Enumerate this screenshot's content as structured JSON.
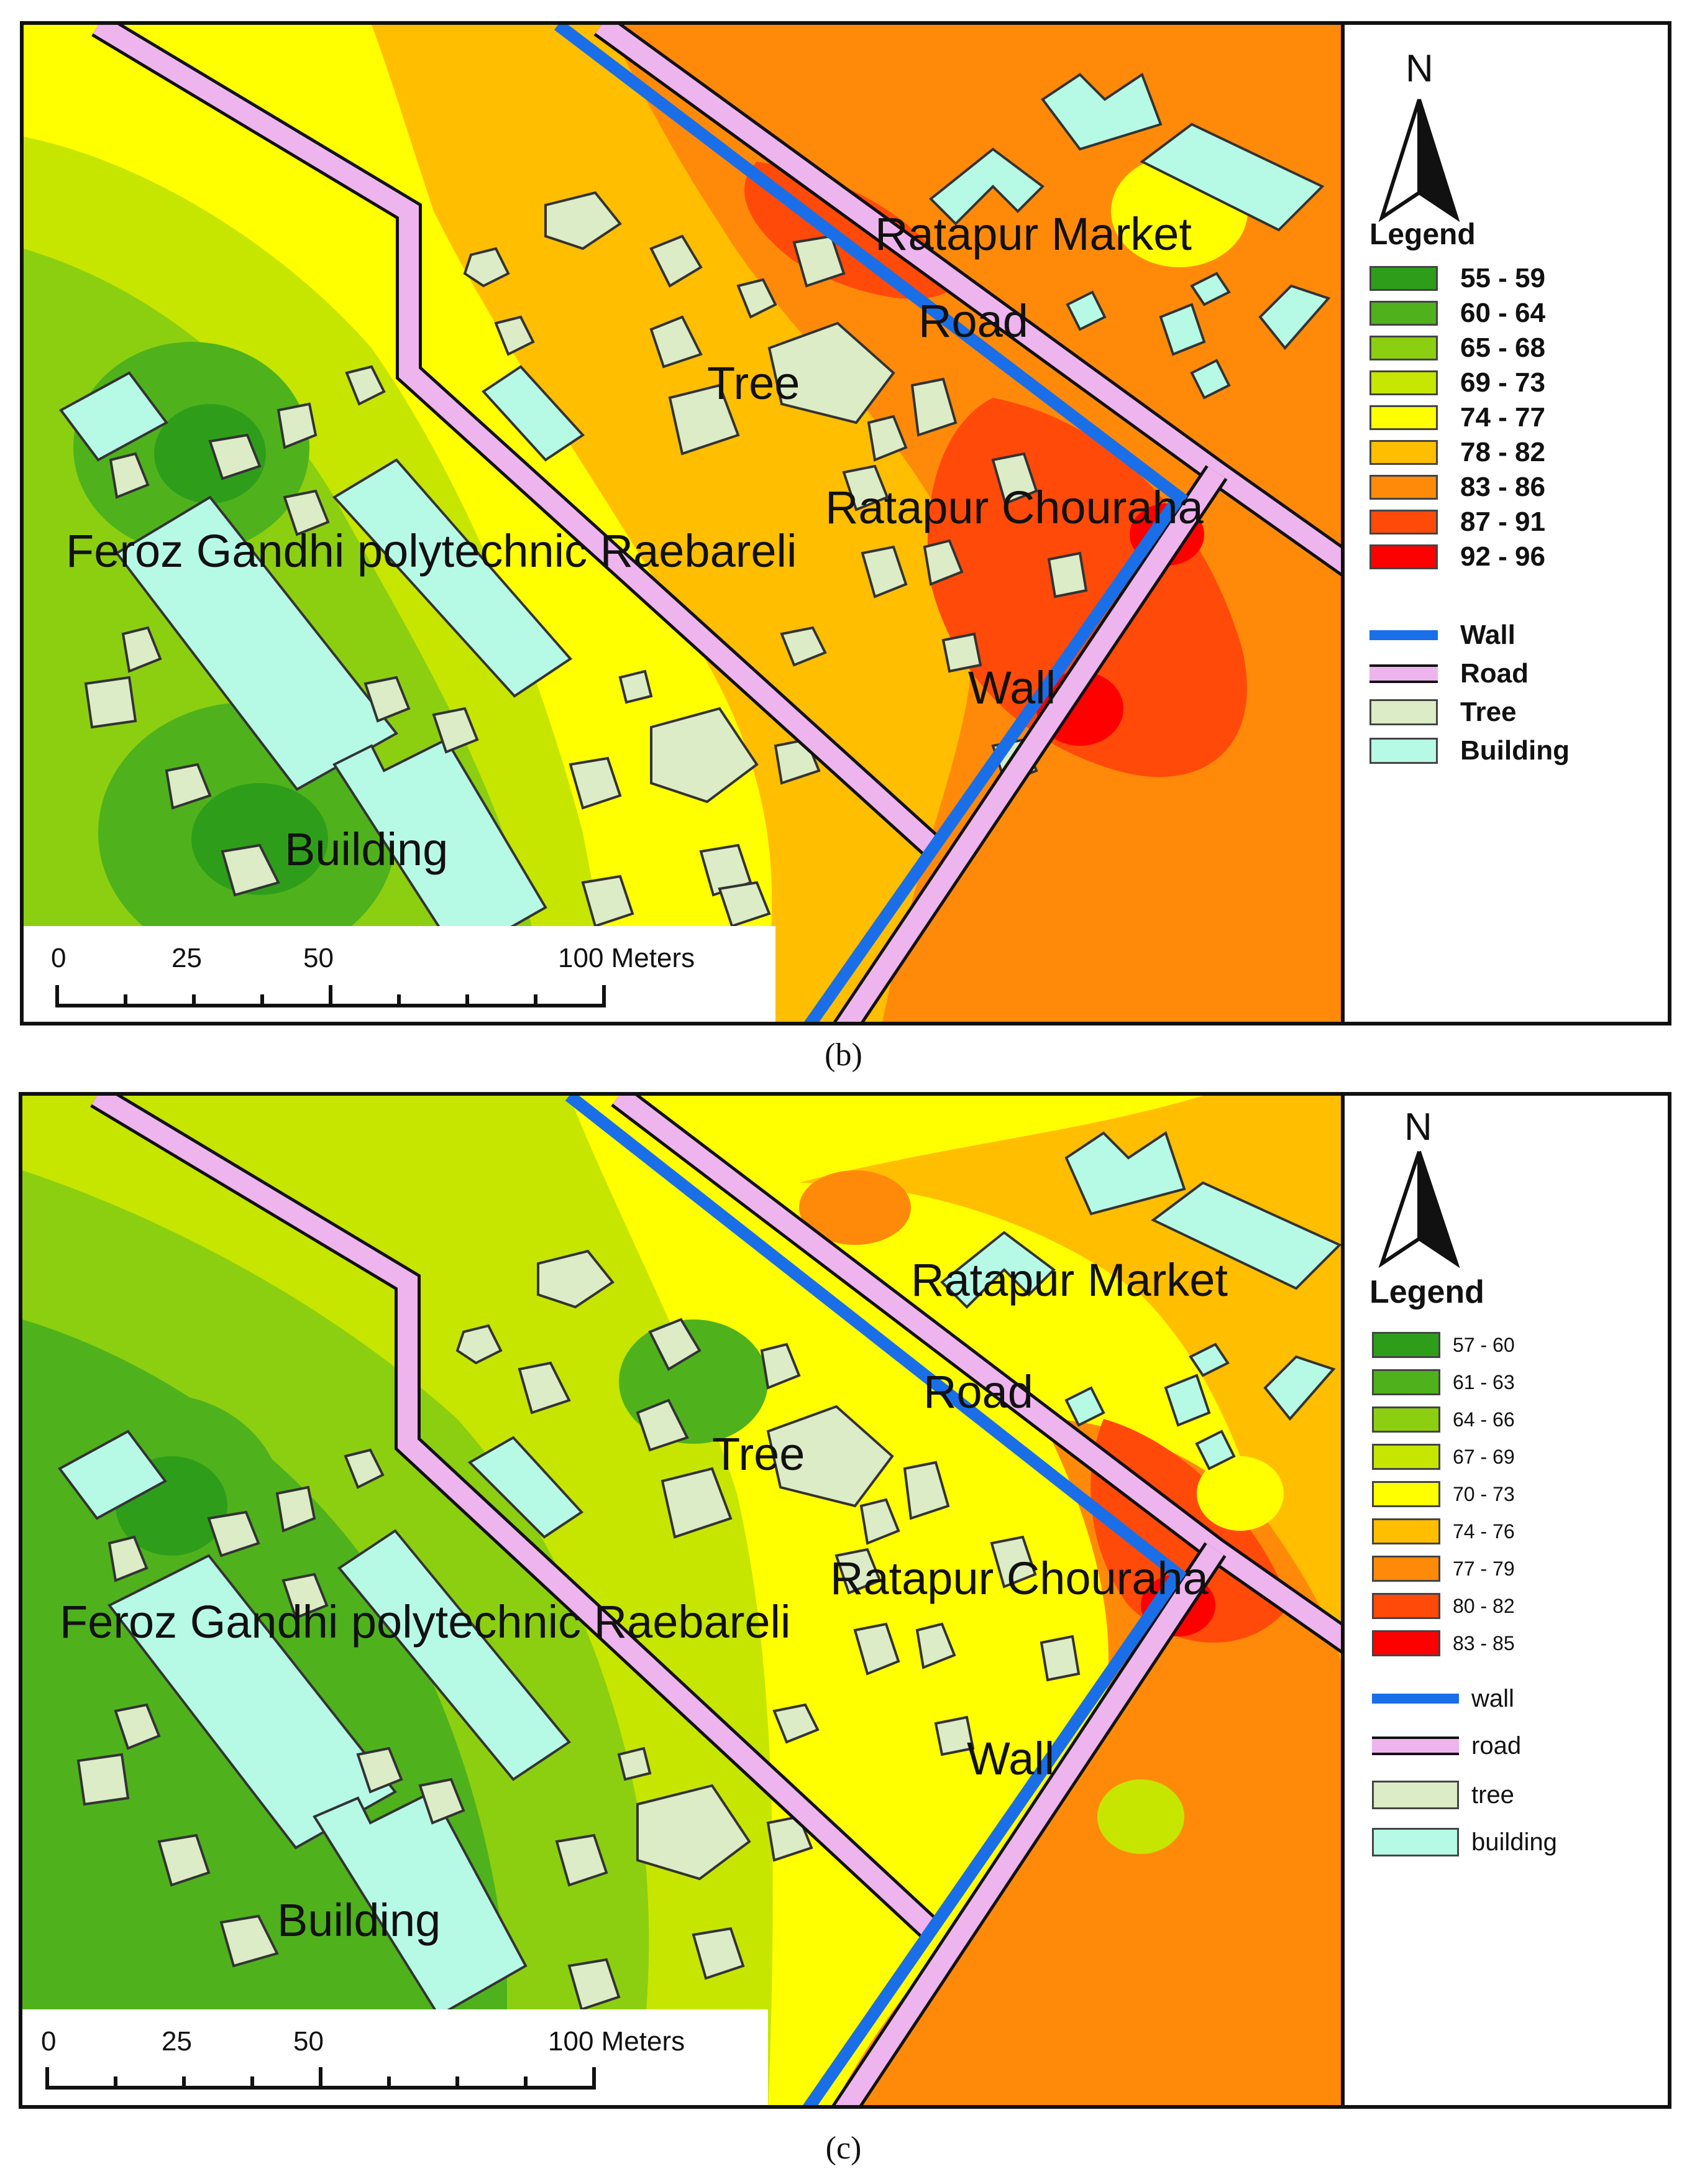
{
  "panels": [
    {
      "caption": "(b)",
      "north_label": "N",
      "legend_title": "Legend",
      "classes": [
        {
          "label": "55 - 59",
          "color": "#2e9e1a"
        },
        {
          "label": "60 - 64",
          "color": "#4fb21c"
        },
        {
          "label": "65 - 68",
          "color": "#8ccf11"
        },
        {
          "label": "69 - 73",
          "color": "#c6e600"
        },
        {
          "label": "74 - 77",
          "color": "#ffff00"
        },
        {
          "label": "78 - 82",
          "color": "#ffbe00"
        },
        {
          "label": "83 - 86",
          "color": "#ff8a0a"
        },
        {
          "label": "87 - 91",
          "color": "#ff4a0a"
        },
        {
          "label": "92 - 96",
          "color": "#ff0000"
        }
      ],
      "features": [
        {
          "label": "Wall",
          "color": "#1a6fe8"
        },
        {
          "label": "Road",
          "color": "#eeb4ee"
        },
        {
          "label": "Tree",
          "color": "#dcecc6"
        },
        {
          "label": "Building",
          "color": "#b6fae6"
        }
      ],
      "map_labels": {
        "market": "Ratapur Market",
        "road": "Road",
        "tree": "Tree",
        "chouraha": "Ratapur Chouraha",
        "polytechnic": "Feroz Gandhi polytechnic Raebareli",
        "wall": "Wall",
        "building": "Building"
      },
      "scale": {
        "ticks": [
          "0",
          "25",
          "50",
          "100 Meters"
        ]
      }
    },
    {
      "caption": "(c)",
      "north_label": "N",
      "legend_title": "Legend",
      "classes": [
        {
          "label": "57 - 60",
          "color": "#2e9e1a"
        },
        {
          "label": "61 - 63",
          "color": "#4fb21c"
        },
        {
          "label": "64 - 66",
          "color": "#8ccf11"
        },
        {
          "label": "67 - 69",
          "color": "#c6e600"
        },
        {
          "label": "70 - 73",
          "color": "#ffff00"
        },
        {
          "label": "74 - 76",
          "color": "#ffbe00"
        },
        {
          "label": "77 - 79",
          "color": "#ff8a0a"
        },
        {
          "label": "80 - 82",
          "color": "#ff4a0a"
        },
        {
          "label": "83 - 85",
          "color": "#ff0000"
        }
      ],
      "features": [
        {
          "label": "wall",
          "color": "#1a6fe8"
        },
        {
          "label": "road",
          "color": "#eeb4ee"
        },
        {
          "label": "tree",
          "color": "#dcecc6"
        },
        {
          "label": "building",
          "color": "#b6fae6"
        }
      ],
      "map_labels": {
        "market": "Ratapur Market",
        "road": "Road",
        "tree": "Tree",
        "chouraha": "Ratapur Chouraha",
        "polytechnic": "Feroz Gandhi polytechnic Raebareli",
        "wall": "Wall",
        "building": "Building"
      },
      "scale": {
        "ticks": [
          "0",
          "25",
          "50",
          "100 Meters"
        ]
      }
    }
  ]
}
